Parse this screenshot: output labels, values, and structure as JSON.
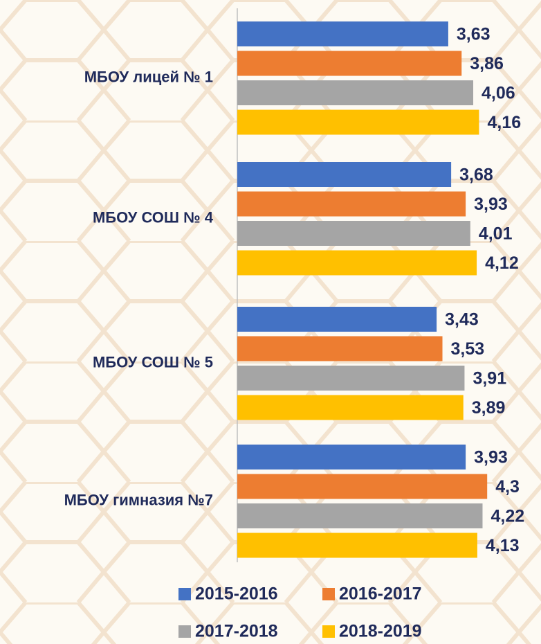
{
  "chart_data": {
    "type": "barh",
    "categories": [
      "МБОУ лицей № 1",
      "МБОУ СОШ № 4",
      "МБОУ СОШ № 5",
      "МБОУ гимназия №7"
    ],
    "series": [
      {
        "name": "2015-2016",
        "color": "#4472c4",
        "values": [
          3.63,
          3.68,
          3.43,
          3.93
        ],
        "value_labels": [
          "3,63",
          "3,68",
          "3,43",
          "3,93"
        ]
      },
      {
        "name": "2016-2017",
        "color": "#ed7d31",
        "values": [
          3.86,
          3.93,
          3.53,
          4.3
        ],
        "value_labels": [
          "3,86",
          "3,93",
          "3,53",
          "4,3"
        ]
      },
      {
        "name": "2017-2018",
        "color": "#a5a5a5",
        "values": [
          4.06,
          4.01,
          3.91,
          4.22
        ],
        "value_labels": [
          "4,06",
          "4,01",
          "3,91",
          "4,22"
        ]
      },
      {
        "name": "2018-2019",
        "color": "#ffc000",
        "values": [
          4.16,
          4.12,
          3.89,
          4.13
        ],
        "value_labels": [
          "4,16",
          "4,12",
          "3,89",
          "4,13"
        ]
      }
    ],
    "xlim": [
      0,
      5
    ]
  }
}
